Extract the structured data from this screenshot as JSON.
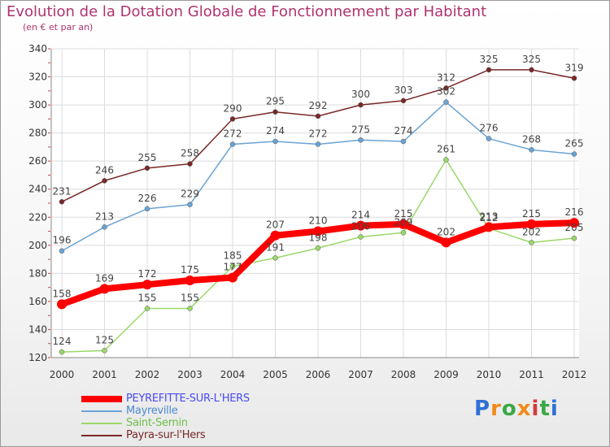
{
  "title": "Evolution de la Dotation Globale de Fonctionnement par Habitant",
  "subtitle": "(en € et par an)",
  "logo": {
    "letters": [
      "P",
      "r",
      "o",
      "x",
      "i",
      "t",
      "i"
    ],
    "colors": [
      "#2f6fd6",
      "#f08a1c",
      "#39a845",
      "#f08a1c",
      "#d43a3a",
      "#39a845",
      "#2f6fd6"
    ]
  },
  "chart_data": {
    "type": "line",
    "title": "Evolution de la Dotation Globale de Fonctionnement par Habitant",
    "subtitle": "(en € et par an)",
    "xlabel": "",
    "ylabel": "",
    "x": [
      "2000",
      "2001",
      "2002",
      "2003",
      "2004",
      "2005",
      "2006",
      "2007",
      "2008",
      "2009",
      "2010",
      "2011",
      "2012"
    ],
    "ylim": [
      120,
      340
    ],
    "yticks": [
      120,
      140,
      160,
      180,
      200,
      220,
      240,
      260,
      280,
      300,
      320,
      340
    ],
    "grid": true,
    "legend_position": "bottom-left",
    "series": [
      {
        "name": "PEYREFITTE-SUR-L'HERS",
        "color": "#ff0000",
        "label_color": "#4a4af0",
        "values": [
          158,
          169,
          172,
          175,
          177,
          207,
          210,
          214,
          215,
          202,
          213,
          215,
          216
        ],
        "labels": [
          "158",
          "169",
          "172",
          "175",
          "177",
          "207",
          "210",
          "214",
          "215",
          "202",
          "213",
          "215",
          "216"
        ]
      },
      {
        "name": "Mayreville",
        "color": "#6aa3d5",
        "label_color": "#4a8ad0",
        "values": [
          196,
          213,
          226,
          229,
          272,
          274,
          272,
          275,
          274,
          302,
          276,
          268,
          265
        ],
        "labels": [
          "196",
          "213",
          "226",
          "229",
          "272",
          "274",
          "272",
          "275",
          "274",
          "302",
          "276",
          "268",
          "265"
        ]
      },
      {
        "name": "Saint-Sernin",
        "color": "#9ad86a",
        "label_color": "#6ec04a",
        "values": [
          124,
          125,
          155,
          155,
          185,
          191,
          198,
          206,
          209,
          261,
          212,
          202,
          205
        ],
        "labels": [
          "124",
          "125",
          "155",
          "155",
          "185",
          "191",
          "198",
          "206",
          "209",
          "261",
          "212",
          "202",
          "205"
        ]
      },
      {
        "name": "Payra-sur-l'Hers",
        "color": "#7a2828",
        "label_color": "#7a2828",
        "values": [
          231,
          246,
          255,
          258,
          290,
          295,
          292,
          300,
          303,
          312,
          325,
          325,
          319
        ],
        "labels": [
          "231",
          "246",
          "255",
          "258",
          "290",
          "295",
          "292",
          "300",
          "303",
          "312",
          "325",
          "325",
          "319"
        ]
      }
    ]
  }
}
